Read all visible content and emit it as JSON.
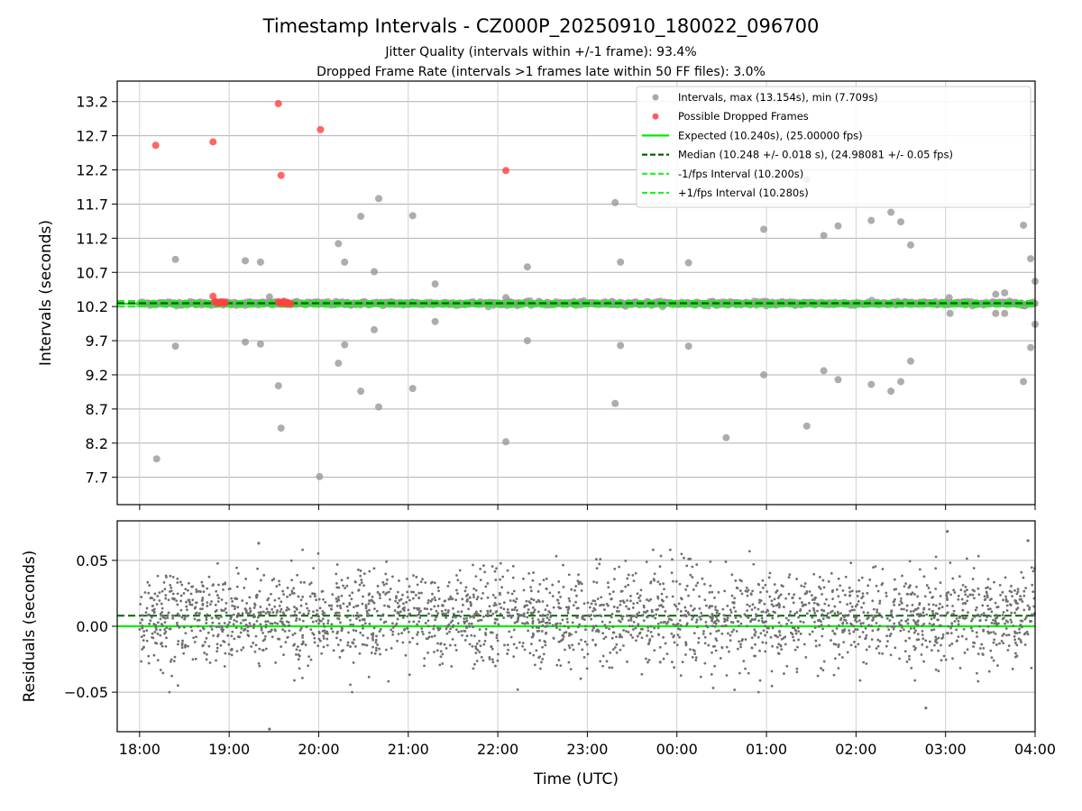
{
  "title": "Timestamp Intervals - CZ000P_20250910_180022_096700",
  "subtitle1": "Jitter Quality (intervals within +/-1 frame): 93.4%",
  "subtitle2": "Dropped Frame Rate (intervals >1 frames late within 50 FF files): 3.0%",
  "colors": {
    "intervals": "#999999",
    "dropped": "#ff4040",
    "expected": "#00ee00",
    "median": "#006400",
    "fps_bounds": "#22ee22",
    "residuals": "#707070",
    "grid": "#b0b0b0"
  },
  "chart_data": [
    {
      "type": "scatter",
      "ylabel": "Intervals (seconds)",
      "xlabel": "",
      "x_unit": "hours since 18:00 UTC",
      "xlim": [
        -0.25,
        10.0
      ],
      "ylim": [
        7.3,
        13.5
      ],
      "y_ticks": [
        7.7,
        8.2,
        8.7,
        9.2,
        9.7,
        10.2,
        10.7,
        11.2,
        11.7,
        12.2,
        12.7,
        13.2
      ],
      "y_tick_labels": [
        "7.7",
        "8.2",
        "8.7",
        "9.2",
        "9.7",
        "10.2",
        "10.7",
        "11.2",
        "11.7",
        "12.2",
        "12.7",
        "13.2"
      ],
      "grid": true,
      "legend_position": "top-right",
      "legend": [
        "Intervals, max (13.154s), min (7.709s)",
        "Possible Dropped Frames",
        "Expected (10.240s), (25.00000 fps)",
        "Median (10.248 +/- 0.018 s), (24.98081 +/- 0.05 fps)",
        "-1/fps Interval (10.200s)",
        "+1/fps Interval (10.280s)"
      ],
      "lines": {
        "expected": 10.24,
        "median": 10.248,
        "lower_bound": 10.2,
        "upper_bound": 10.28
      },
      "band_summary": {
        "x_range": [
          0.0,
          10.0
        ],
        "typical_range": [
          10.2,
          10.3
        ],
        "note": "about 2,800 intervals cluster tightly around 10.24 s"
      },
      "outliers": [
        [
          0.19,
          7.97
        ],
        [
          0.4,
          9.62
        ],
        [
          0.4,
          10.89
        ],
        [
          1.18,
          10.87
        ],
        [
          1.18,
          9.68
        ],
        [
          1.35,
          10.85
        ],
        [
          1.35,
          9.65
        ],
        [
          1.45,
          10.34
        ],
        [
          1.55,
          9.04
        ],
        [
          1.58,
          8.42
        ],
        [
          2.01,
          7.71
        ],
        [
          2.22,
          11.12
        ],
        [
          2.22,
          9.37
        ],
        [
          2.29,
          10.85
        ],
        [
          2.29,
          9.64
        ],
        [
          2.47,
          11.52
        ],
        [
          2.47,
          8.96
        ],
        [
          2.62,
          10.71
        ],
        [
          2.62,
          9.86
        ],
        [
          2.67,
          11.78
        ],
        [
          2.67,
          8.73
        ],
        [
          3.05,
          11.53
        ],
        [
          3.05,
          9.0
        ],
        [
          3.3,
          10.53
        ],
        [
          3.3,
          9.98
        ],
        [
          4.09,
          10.33
        ],
        [
          4.09,
          8.22
        ],
        [
          4.33,
          10.78
        ],
        [
          4.33,
          9.7
        ],
        [
          5.31,
          11.72
        ],
        [
          5.31,
          8.78
        ],
        [
          5.37,
          10.85
        ],
        [
          5.37,
          9.63
        ],
        [
          6.13,
          10.84
        ],
        [
          6.13,
          9.62
        ],
        [
          6.55,
          8.28
        ],
        [
          6.97,
          11.33
        ],
        [
          6.97,
          9.2
        ],
        [
          7.45,
          8.45
        ],
        [
          7.45,
          12.06
        ],
        [
          7.64,
          11.24
        ],
        [
          7.64,
          9.26
        ],
        [
          7.8,
          11.38
        ],
        [
          7.8,
          9.13
        ],
        [
          8.17,
          11.46
        ],
        [
          8.17,
          9.06
        ],
        [
          8.39,
          11.58
        ],
        [
          8.39,
          8.96
        ],
        [
          8.5,
          11.44
        ],
        [
          8.5,
          9.1
        ],
        [
          8.61,
          11.1
        ],
        [
          8.61,
          9.4
        ],
        [
          9.04,
          10.33
        ],
        [
          9.05,
          10.1
        ],
        [
          9.56,
          10.38
        ],
        [
          9.56,
          10.1
        ],
        [
          9.66,
          10.4
        ],
        [
          9.66,
          10.1
        ],
        [
          9.87,
          11.39
        ],
        [
          9.87,
          9.1
        ],
        [
          9.95,
          10.9
        ],
        [
          9.95,
          9.6
        ],
        [
          10.0,
          10.57
        ],
        [
          10.0,
          9.94
        ]
      ],
      "dropped_frames": [
        [
          0.18,
          12.56
        ],
        [
          0.82,
          12.61
        ],
        [
          1.55,
          13.17
        ],
        [
          1.58,
          12.12
        ],
        [
          2.02,
          12.79
        ],
        [
          4.09,
          12.19
        ],
        [
          0.82,
          10.35
        ],
        [
          0.84,
          10.27
        ],
        [
          0.86,
          10.26
        ],
        [
          0.88,
          10.25
        ],
        [
          0.9,
          10.26
        ],
        [
          0.92,
          10.27
        ],
        [
          0.94,
          10.25
        ],
        [
          0.96,
          10.26
        ],
        [
          1.55,
          10.27
        ],
        [
          1.57,
          10.25
        ],
        [
          1.59,
          10.26
        ],
        [
          1.61,
          10.27
        ],
        [
          1.63,
          10.24
        ],
        [
          1.65,
          10.26
        ],
        [
          1.67,
          10.25
        ],
        [
          1.69,
          10.24
        ]
      ]
    },
    {
      "type": "scatter",
      "ylabel": "Residuals (seconds)",
      "xlabel": "Time (UTC)",
      "x_unit": "hours since 18:00 UTC",
      "xlim": [
        -0.25,
        10.0
      ],
      "ylim": [
        -0.08,
        0.08
      ],
      "y_ticks": [
        -0.05,
        0.0,
        0.05
      ],
      "y_tick_labels": [
        "−0.05",
        "0.00",
        "0.05"
      ],
      "x_ticks": [
        0,
        1,
        2,
        3,
        4,
        5,
        6,
        7,
        8,
        9,
        10
      ],
      "x_tick_labels": [
        "18:00",
        "19:00",
        "20:00",
        "21:00",
        "22:00",
        "23:00",
        "00:00",
        "01:00",
        "02:00",
        "03:00",
        "04:00"
      ],
      "grid": true,
      "lines": {
        "zero": 0.0,
        "median_offset": 0.008
      },
      "residual_summary": {
        "x_range": [
          0.0,
          10.0
        ],
        "spread_std": 0.018,
        "extremes": [
          [
            1.45,
            -0.078
          ],
          [
            9.02,
            0.072
          ],
          [
            8.78,
            -0.062
          ],
          [
            9.92,
            0.065
          ],
          [
            1.33,
            0.063
          ]
        ]
      }
    }
  ]
}
